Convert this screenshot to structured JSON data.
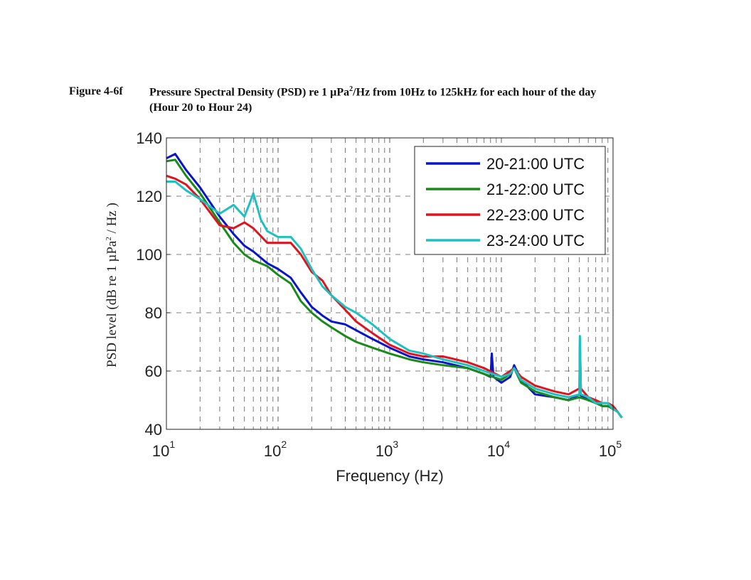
{
  "caption": {
    "label": "Figure 4-6f",
    "line1_pre": "Pressure Spectral Density (PSD) re 1 µPa",
    "line1_sup": "2",
    "line1_post": "/Hz from 10Hz to 125kHz for each hour of the day",
    "line2": "(Hour 20 to Hour 24)"
  },
  "chart_data": {
    "type": "line",
    "xscale": "log",
    "xlim": [
      10,
      100000
    ],
    "ylim": [
      40,
      140
    ],
    "xlabel": "Frequency (Hz)",
    "ylabel_pre": "PSD level (dB re 1  µPa",
    "ylabel_sup": "2",
    "ylabel_post": " / Hz )",
    "yticks": [
      "40",
      "60",
      "80",
      "100",
      "120",
      "140"
    ],
    "xticks": [
      {
        "base": "10",
        "exp": "1"
      },
      {
        "base": "10",
        "exp": "2"
      },
      {
        "base": "10",
        "exp": "3"
      },
      {
        "base": "10",
        "exp": "4"
      },
      {
        "base": "10",
        "exp": "5"
      }
    ],
    "grid": true,
    "legend_position": "top-right",
    "series": [
      {
        "name": "20-21:00 UTC",
        "color": "#0a14c8",
        "x": [
          10,
          12,
          15,
          20,
          30,
          40,
          50,
          60,
          80,
          100,
          130,
          160,
          200,
          250,
          300,
          400,
          500,
          700,
          1000,
          1500,
          2000,
          3000,
          5000,
          7000,
          8000,
          8200,
          8500,
          10000,
          12000,
          13000,
          15000,
          20000,
          30000,
          40000,
          50000,
          60000,
          70000,
          80000,
          90000,
          100000,
          110000,
          120000
        ],
        "y": [
          133,
          134.5,
          129,
          123,
          113,
          107,
          103,
          101,
          97,
          95,
          92,
          87,
          82,
          79,
          77,
          76,
          74,
          71,
          68,
          65,
          64,
          63,
          61,
          59,
          58,
          66,
          58,
          56,
          58,
          62,
          57,
          52,
          51,
          50,
          52,
          50,
          50,
          48,
          48,
          47,
          46,
          44
        ]
      },
      {
        "name": "21-22:00 UTC",
        "color": "#1a8a1a",
        "x": [
          10,
          12,
          15,
          20,
          30,
          40,
          50,
          60,
          80,
          100,
          130,
          160,
          200,
          250,
          300,
          400,
          500,
          700,
          1000,
          1500,
          2000,
          3000,
          5000,
          7000,
          10000,
          12000,
          13000,
          15000,
          20000,
          30000,
          40000,
          50000,
          60000,
          70000,
          80000,
          90000,
          100000,
          110000,
          120000
        ],
        "y": [
          132,
          132.5,
          127,
          121,
          111,
          104,
          100,
          98,
          96,
          93,
          90,
          84,
          80,
          77,
          75,
          72,
          70,
          68,
          66,
          64,
          63,
          62,
          61,
          59,
          57,
          59,
          61,
          56,
          53,
          51,
          50,
          51,
          50,
          49,
          48,
          48,
          47,
          46,
          44
        ]
      },
      {
        "name": "22-23:00 UTC",
        "color": "#e0141e",
        "x": [
          10,
          12,
          15,
          20,
          30,
          40,
          50,
          60,
          80,
          100,
          130,
          160,
          200,
          250,
          300,
          400,
          500,
          700,
          1000,
          1500,
          2000,
          3000,
          5000,
          7000,
          10000,
          12000,
          13000,
          15000,
          20000,
          30000,
          40000,
          50000,
          50500,
          51500,
          60000,
          70000,
          80000,
          90000,
          100000,
          110000,
          120000
        ],
        "y": [
          127,
          126,
          124,
          119,
          110,
          109,
          111,
          109,
          104,
          104,
          104,
          100,
          94,
          91,
          86,
          81,
          77,
          73,
          69,
          66,
          65,
          65,
          63,
          61,
          58,
          60,
          61,
          58,
          55,
          53,
          52,
          54,
          71,
          54,
          51,
          50,
          49,
          49,
          48,
          46,
          44
        ]
      },
      {
        "name": "23-24:00 UTC",
        "color": "#20c0c0",
        "x": [
          10,
          12,
          15,
          20,
          30,
          40,
          50,
          55,
          60,
          70,
          80,
          100,
          130,
          160,
          200,
          250,
          300,
          400,
          500,
          700,
          1000,
          1500,
          2000,
          3000,
          5000,
          7000,
          10000,
          12000,
          13000,
          15000,
          20000,
          30000,
          40000,
          50000,
          50500,
          51500,
          60000,
          70000,
          80000,
          90000,
          100000,
          110000,
          120000
        ],
        "y": [
          125,
          125,
          122,
          119,
          114,
          117,
          113,
          117,
          121,
          112,
          108,
          106,
          106,
          102,
          95,
          89,
          86,
          82,
          80,
          76,
          71,
          67,
          66,
          64,
          62,
          60,
          58,
          59,
          61,
          57,
          54,
          52,
          51,
          52,
          72,
          52,
          51,
          49,
          49,
          49,
          47,
          46,
          44
        ]
      }
    ]
  }
}
